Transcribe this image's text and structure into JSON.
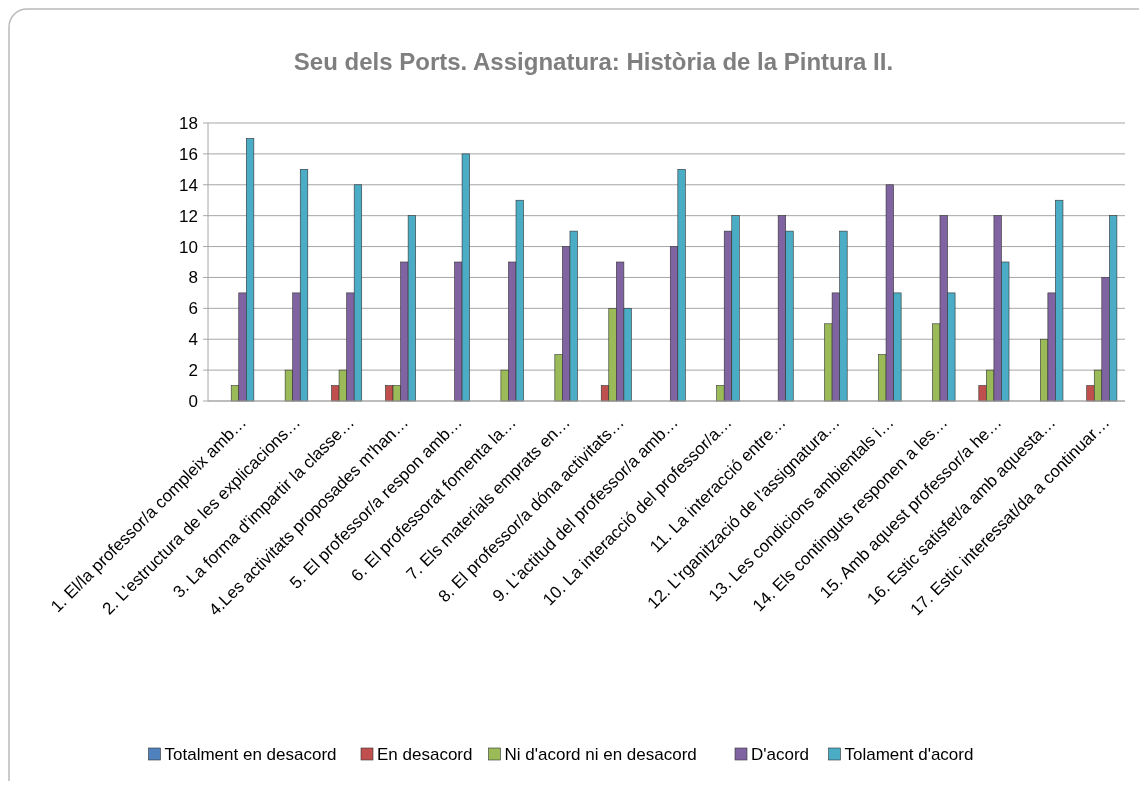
{
  "chart_data": {
    "type": "bar",
    "title": "Seu dels Ports. Assignatura: Història de la Pintura II.",
    "categories": [
      "1. El/la professor/a compleix amb…",
      "2. L'estructura de les explicacions…",
      "3. La forma d'impartir la classe…",
      "4.Les activitats proposades m'han…",
      "5. El professor/a respon amb…",
      "6. El professorat fomenta la…",
      "7. Els materials emprats en…",
      "8. El professor/a dóna activitats…",
      "9. L'actitud del professor/a amb…",
      "10. La interacció del professor/a…",
      "11. La interacció entre…",
      "12. L'rganització de l'assignatura…",
      "13. Les condicions ambientals i…",
      "14. Els continguts responen a les…",
      "15. Amb aquest professor/a he…",
      "16. Estic satisfet/a amb aquesta…",
      "17. Estic interessat/da a continuar…"
    ],
    "series": [
      {
        "name": "Totalment en desacord",
        "color": "#4f81bd",
        "values": [
          0,
          0,
          0,
          0,
          0,
          0,
          0,
          0,
          0,
          0,
          0,
          0,
          0,
          0,
          0,
          0,
          0
        ]
      },
      {
        "name": "En desacord",
        "color": "#c0504d",
        "values": [
          0,
          0,
          1,
          1,
          0,
          0,
          0,
          1,
          0,
          0,
          0,
          0,
          0,
          0,
          1,
          0,
          1
        ]
      },
      {
        "name": "Ni d'acord ni en desacord",
        "color": "#9bbb59",
        "values": [
          1,
          2,
          2,
          1,
          0,
          2,
          3,
          6,
          0,
          1,
          0,
          5,
          3,
          5,
          2,
          4,
          2
        ]
      },
      {
        "name": "D'acord",
        "color": "#8064a2",
        "values": [
          7,
          7,
          7,
          9,
          9,
          9,
          10,
          9,
          10,
          11,
          12,
          7,
          14,
          12,
          12,
          7,
          8
        ]
      },
      {
        "name": "Tolament d'acord",
        "color": "#4bacc6",
        "values": [
          17,
          15,
          14,
          12,
          16,
          13,
          11,
          6,
          15,
          12,
          11,
          11,
          7,
          7,
          9,
          13,
          12
        ]
      }
    ],
    "ylim": [
      0,
      18
    ],
    "yticks": [
      0,
      2,
      4,
      6,
      8,
      10,
      12,
      14,
      16,
      18
    ],
    "grid": "y",
    "legend": "bottom"
  }
}
